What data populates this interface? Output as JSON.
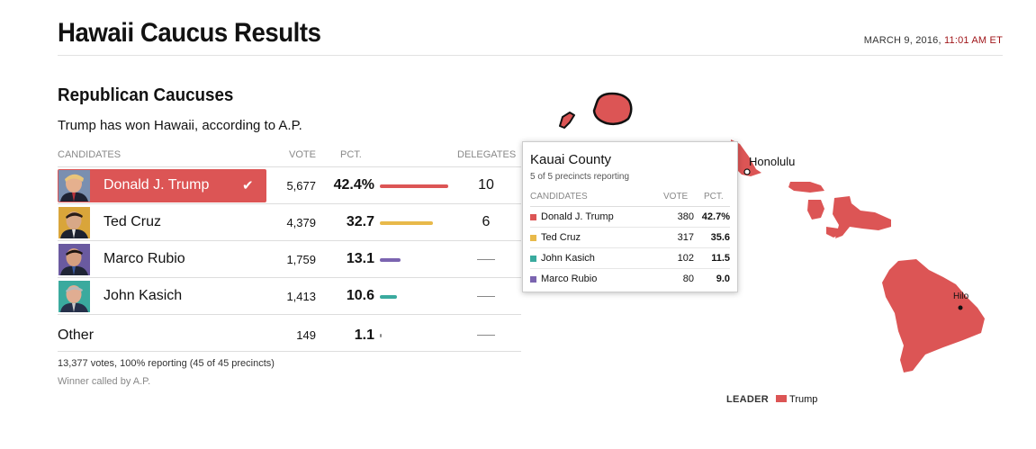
{
  "page": {
    "title": "Hawaii Caucus Results",
    "date": "MARCH 9, 2016,",
    "time": "11:01 AM ET"
  },
  "section": {
    "title": "Republican Caucuses",
    "summary": "Trump has won Hawaii, according to A.P."
  },
  "table": {
    "headers": {
      "candidates": "CANDIDATES",
      "vote": "VOTE",
      "pct": "PCT.",
      "delegates": "DELEGATES"
    },
    "rows": [
      {
        "name": "Donald J. Trump",
        "vote": "5,677",
        "pct": "42.4%",
        "pct_value": 42.4,
        "delegates": "10",
        "color": "#dc5555",
        "winner": true
      },
      {
        "name": "Ted Cruz",
        "vote": "4,379",
        "pct": "32.7",
        "pct_value": 32.7,
        "delegates": "6",
        "color": "#e8b94a"
      },
      {
        "name": "Marco Rubio",
        "vote": "1,759",
        "pct": "13.1",
        "pct_value": 13.1,
        "delegates": "",
        "color": "#7b64b0"
      },
      {
        "name": "John Kasich",
        "vote": "1,413",
        "pct": "10.6",
        "pct_value": 10.6,
        "delegates": "",
        "color": "#3aaa9e"
      },
      {
        "name": "Other",
        "vote": "149",
        "pct": "1.1",
        "pct_value": 1.1,
        "delegates": "",
        "color": "#888888"
      }
    ],
    "footer_votes": "13,377 votes, 100% reporting (45 of 45 precincts)",
    "footer_called": "Winner called by A.P."
  },
  "map": {
    "cities": {
      "honolulu": "Honolulu",
      "hilo": "Hilo"
    },
    "county_color": "#dc5555",
    "legend_label": "LEADER",
    "legend_item": "Trump"
  },
  "tooltip": {
    "title": "Kauai County",
    "subtitle": "5 of 5 precincts reporting",
    "headers": {
      "candidates": "CANDIDATES",
      "vote": "VOTE",
      "pct": "PCT."
    },
    "rows": [
      {
        "name": "Donald J. Trump",
        "vote": "380",
        "pct": "42.7%",
        "color": "#dc5555"
      },
      {
        "name": "Ted Cruz",
        "vote": "317",
        "pct": "35.6",
        "color": "#e8b94a"
      },
      {
        "name": "John Kasich",
        "vote": "102",
        "pct": "11.5",
        "color": "#3aaa9e"
      },
      {
        "name": "Marco Rubio",
        "vote": "80",
        "pct": "9.0",
        "color": "#7b64b0"
      }
    ]
  }
}
